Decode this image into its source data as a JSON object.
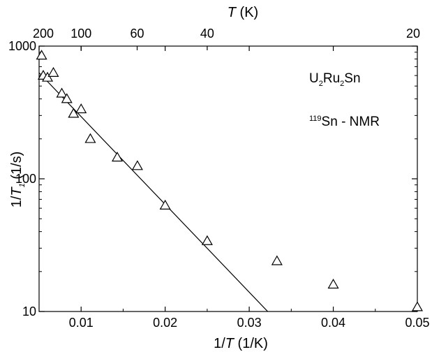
{
  "chart_data": {
    "type": "scatter",
    "x_axis": {
      "label_prefix": "1/",
      "label_symbol": "T",
      "label_unit": " (1/K)",
      "min": 0.005,
      "max": 0.05,
      "ticks": [
        0.01,
        0.02,
        0.03,
        0.04,
        0.05
      ],
      "tick_labels": [
        "0.01",
        "0.02",
        "0.03",
        "0.04",
        "0.05"
      ]
    },
    "top_axis": {
      "label_symbol": "T",
      "label_unit": " (K)",
      "ticks": [
        200,
        100,
        60,
        40,
        20
      ],
      "tick_labels": [
        "200",
        "100",
        "60",
        "40",
        "20"
      ]
    },
    "y_axis": {
      "scale": "log",
      "label_prefix": "1/",
      "label_symbol": "T",
      "label_sub": "1",
      "label_unit": " (1/s)",
      "min": 10,
      "max": 1000,
      "ticks": [
        10,
        100,
        1000
      ],
      "tick_labels": [
        "10",
        "100",
        "1000"
      ]
    },
    "series": [
      {
        "marker": "open-triangle",
        "points": [
          {
            "x": 0.0053,
            "y": 850
          },
          {
            "x": 0.0055,
            "y": 600
          },
          {
            "x": 0.006,
            "y": 580
          },
          {
            "x": 0.0067,
            "y": 630
          },
          {
            "x": 0.0077,
            "y": 440
          },
          {
            "x": 0.0083,
            "y": 400
          },
          {
            "x": 0.0091,
            "y": 310
          },
          {
            "x": 0.01,
            "y": 335
          },
          {
            "x": 0.0111,
            "y": 200
          },
          {
            "x": 0.0143,
            "y": 145
          },
          {
            "x": 0.0167,
            "y": 125
          },
          {
            "x": 0.02,
            "y": 63
          },
          {
            "x": 0.025,
            "y": 34
          },
          {
            "x": 0.0333,
            "y": 24
          },
          {
            "x": 0.04,
            "y": 16
          },
          {
            "x": 0.05,
            "y": 10.8
          }
        ]
      }
    ],
    "fit_line": {
      "x": [
        0.005,
        0.0322
      ],
      "y": [
        630,
        10
      ]
    },
    "annotations": {
      "compound": {
        "p1": "U",
        "s1": "2",
        "p2": "Ru",
        "s2": "2",
        "p3": "Sn"
      },
      "nmr": {
        "sup": "119",
        "text": "Sn - NMR"
      }
    },
    "grid": false,
    "legend": "none"
  }
}
